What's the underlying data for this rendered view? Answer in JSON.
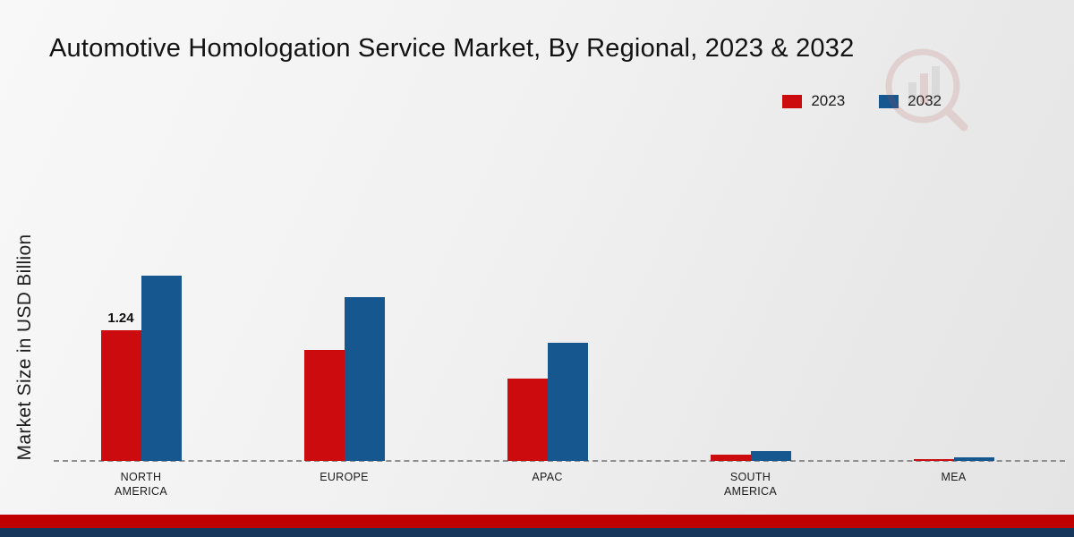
{
  "title": "Automotive Homologation Service Market, By Regional, 2023 & 2032",
  "chart_data": {
    "type": "bar",
    "title": "Automotive Homologation Service Market, By Regional, 2023 & 2032",
    "xlabel": "",
    "ylabel": "Market Size in USD Billion",
    "categories": [
      "NORTH AMERICA",
      "EUROPE",
      "APAC",
      "SOUTH AMERICA",
      "MEA"
    ],
    "series": [
      {
        "name": "2023",
        "color": "#cc0b0e",
        "values": [
          1.24,
          1.05,
          0.78,
          0.06,
          0.02
        ]
      },
      {
        "name": "2032",
        "color": "#17578f",
        "values": [
          1.75,
          1.55,
          1.12,
          0.09,
          0.03
        ]
      }
    ],
    "annotations": [
      {
        "category_index": 0,
        "series_index": 0,
        "text": "1.24"
      }
    ],
    "ylim": [
      0,
      2
    ],
    "grid": false,
    "legend_position": "top-right",
    "baseline_style": "dashed"
  },
  "footer": {
    "red_band_color": "#c00000",
    "navy_band_color": "#16365c"
  }
}
